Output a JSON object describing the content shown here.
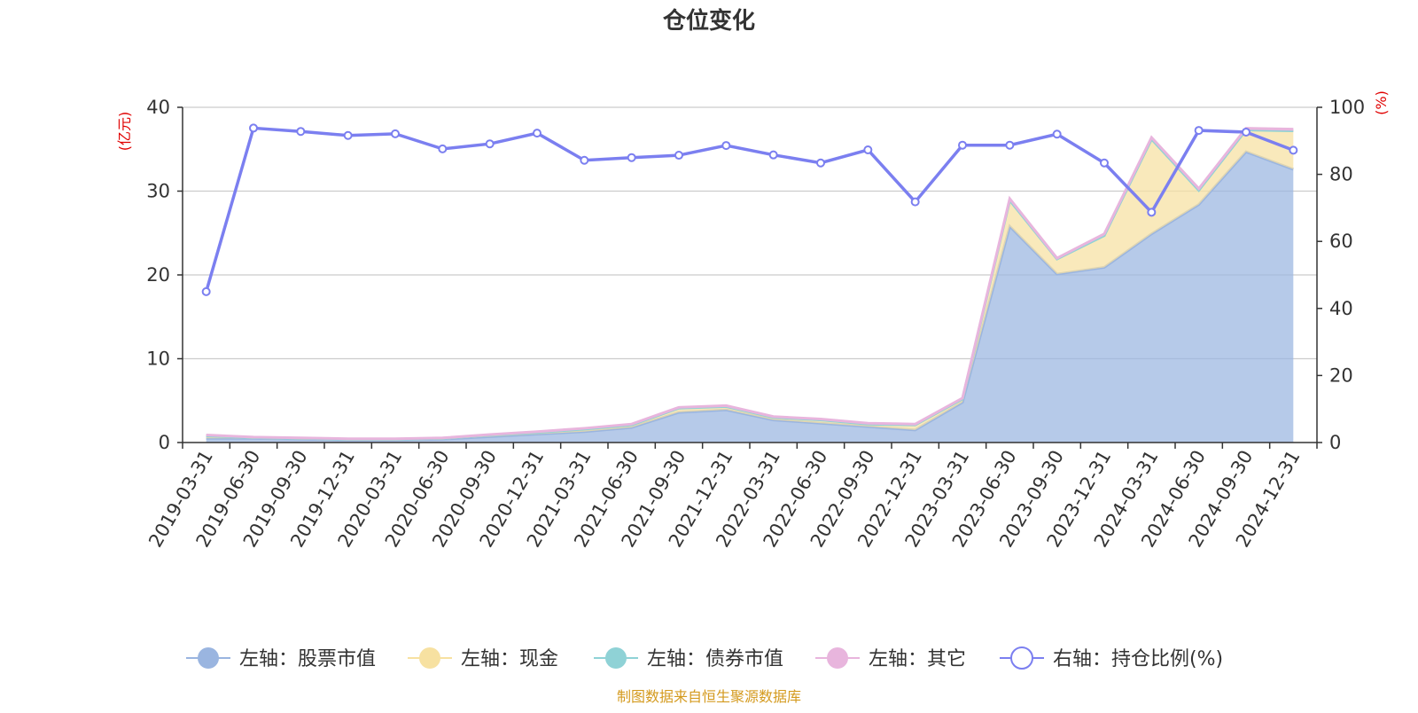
{
  "chart_data": {
    "type": "area",
    "title": "仓位变化",
    "left_axis_unit": "(亿元)",
    "right_axis_unit": "(%)",
    "ylim_left": [
      0,
      40
    ],
    "ylim_right": [
      0,
      100
    ],
    "yticks_left": [
      "0",
      "10",
      "20",
      "30",
      "40"
    ],
    "yticks_right": [
      "0",
      "20",
      "40",
      "60",
      "80",
      "100"
    ],
    "grid": true,
    "legend_position": "bottom",
    "categories": [
      "2019-03-31",
      "2019-06-30",
      "2019-09-30",
      "2019-12-31",
      "2020-03-31",
      "2020-06-30",
      "2020-09-30",
      "2020-12-31",
      "2021-03-31",
      "2021-06-30",
      "2021-09-30",
      "2021-12-31",
      "2022-03-31",
      "2022-06-30",
      "2022-09-30",
      "2022-12-31",
      "2023-03-31",
      "2023-06-30",
      "2023-09-30",
      "2023-12-31",
      "2024-03-31",
      "2024-06-30",
      "2024-09-30",
      "2024-12-31"
    ],
    "series": [
      {
        "name": "左轴：股票市值",
        "axis": "left",
        "kind": "stacked-area",
        "color": "#9ab5e0",
        "values": [
          0.5,
          0.5,
          0.4,
          0.3,
          0.3,
          0.4,
          0.7,
          1.0,
          1.3,
          1.8,
          3.6,
          3.9,
          2.7,
          2.3,
          1.9,
          1.5,
          4.8,
          25.8,
          20.1,
          20.9,
          24.9,
          28.4,
          34.7,
          32.6
        ]
      },
      {
        "name": "左轴：现金",
        "axis": "left",
        "kind": "stacked-area",
        "color": "#f7e1a1",
        "values": [
          0.3,
          0.1,
          0.1,
          0.1,
          0.1,
          0.1,
          0.2,
          0.2,
          0.3,
          0.3,
          0.5,
          0.4,
          0.3,
          0.4,
          0.3,
          0.6,
          0.4,
          3.1,
          1.8,
          3.8,
          11.3,
          1.7,
          2.6,
          4.6
        ]
      },
      {
        "name": "左轴：债券市值",
        "axis": "left",
        "kind": "stacked-area",
        "color": "#8fd2d6",
        "values": [
          0,
          0,
          0,
          0,
          0,
          0,
          0,
          0,
          0,
          0,
          0,
          0,
          0,
          0,
          0,
          0,
          0,
          0,
          0,
          0,
          0,
          0,
          0,
          0
        ]
      },
      {
        "name": "左轴：其它",
        "axis": "left",
        "kind": "stacked-area",
        "color": "#e8b5dd",
        "values": [
          0.1,
          0.05,
          0.05,
          0.05,
          0.05,
          0.05,
          0.05,
          0.1,
          0.1,
          0.1,
          0.1,
          0.1,
          0.1,
          0.1,
          0.1,
          0.1,
          0.1,
          0.2,
          0.1,
          0.2,
          0.2,
          0.2,
          0.2,
          0.2
        ]
      },
      {
        "name": "右轴：持仓比例(%)",
        "axis": "right",
        "kind": "line",
        "color": "#7b7ff0",
        "values": [
          45.0,
          93.8,
          92.8,
          91.6,
          92.1,
          87.6,
          89.1,
          92.3,
          84.2,
          85.0,
          85.7,
          88.6,
          85.8,
          83.4,
          87.3,
          71.8,
          88.7,
          88.7,
          92.0,
          83.4,
          68.7,
          93.1,
          92.6,
          87.2
        ]
      }
    ],
    "source": "制图数据来自恒生聚源数据库"
  }
}
